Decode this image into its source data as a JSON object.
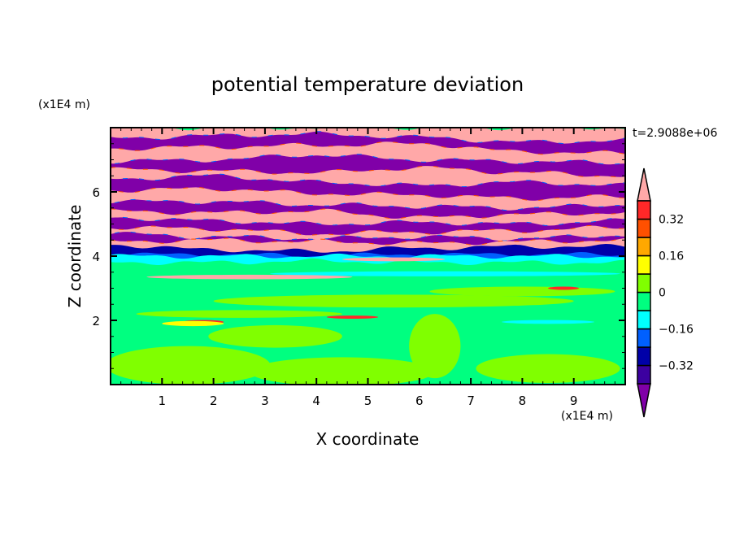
{
  "chart_data": {
    "type": "heatmap",
    "subtype": "filled-contour",
    "title": "potential temperature deviation",
    "xlabel": "X coordinate",
    "ylabel": "Z coordinate",
    "x_unit_label": "(x1E4 m)",
    "y_unit_label": "(x1E4 m)",
    "time_label": "t=2.9088e+06",
    "xlim": [
      0,
      10
    ],
    "ylim": [
      0,
      8
    ],
    "x_ticks": [
      "1",
      "2",
      "3",
      "4",
      "5",
      "6",
      "7",
      "8",
      "9"
    ],
    "y_ticks": [
      "2",
      "4",
      "6"
    ],
    "colorbar": {
      "levels": [
        -0.4,
        -0.32,
        -0.24,
        -0.16,
        -0.08,
        0,
        0.08,
        0.16,
        0.24,
        0.32,
        0.4
      ],
      "tick_labels": [
        "0.32",
        "0.16",
        "0",
        "−0.16",
        "−0.32"
      ],
      "tick_values": [
        0.32,
        0.16,
        0,
        -0.16,
        -0.32
      ],
      "colors": [
        "#3c00a0",
        "#0000a8",
        "#0060ff",
        "#00ffff",
        "#00ff80",
        "#80ff00",
        "#ffff00",
        "#ffa800",
        "#ff5000",
        "#ff2828"
      ],
      "under_color": "#8000a8",
      "over_color": "#ffa8a8",
      "extend": "both"
    },
    "band_x": [
      0,
      2,
      4,
      6,
      8,
      10
    ],
    "bands": [
      {
        "c": "over",
        "z": [
          8,
          8,
          8,
          8,
          8,
          8
        ]
      },
      {
        "c": "under",
        "z": [
          7.67,
          7.75,
          7.8,
          7.7,
          7.55,
          7.6
        ]
      },
      {
        "c": "over",
        "z": [
          7.35,
          7.4,
          7.45,
          7.5,
          7.25,
          7.2
        ]
      },
      {
        "c": "under",
        "z": [
          6.95,
          7.0,
          7.15,
          7.0,
          6.95,
          6.9
        ]
      },
      {
        "c": "over",
        "z": [
          6.7,
          6.65,
          6.6,
          6.75,
          6.6,
          6.5
        ]
      },
      {
        "c": "under",
        "z": [
          6.4,
          6.5,
          6.3,
          6.2,
          6.3,
          6.2
        ]
      },
      {
        "c": "over",
        "z": [
          6.05,
          6.1,
          5.95,
          5.9,
          5.8,
          5.85
        ]
      },
      {
        "c": "under",
        "z": [
          5.7,
          5.7,
          5.6,
          5.55,
          5.5,
          5.6
        ]
      },
      {
        "c": "over",
        "z": [
          5.4,
          5.35,
          5.4,
          5.2,
          5.3,
          5.35
        ]
      },
      {
        "c": "under",
        "z": [
          5.2,
          5.1,
          5.0,
          5.05,
          5.0,
          5.1
        ]
      },
      {
        "c": "over",
        "z": [
          4.9,
          4.85,
          4.7,
          4.75,
          4.8,
          4.9
        ]
      },
      {
        "c": "under",
        "z": [
          4.7,
          4.6,
          4.55,
          4.6,
          4.55,
          4.65
        ]
      },
      {
        "c": "over",
        "z": [
          4.45,
          4.5,
          4.45,
          4.4,
          4.45,
          4.5
        ]
      },
      {
        "c": 1,
        "z": [
          4.35,
          4.2,
          4.15,
          4.25,
          4.3,
          4.3
        ]
      },
      {
        "c": 2,
        "z": [
          4.05,
          4.05,
          4.02,
          4.05,
          4.05,
          4.05
        ]
      },
      {
        "c": 3,
        "z": [
          4.0,
          4.0,
          4.0,
          4.0,
          4.0,
          4.0
        ]
      },
      {
        "c": 4,
        "z": [
          3.8,
          3.8,
          3.85,
          3.8,
          3.8,
          3.8
        ]
      }
    ],
    "patches": [
      {
        "c": 5,
        "x": 1.5,
        "z": 0.6,
        "rx": 1.6,
        "rz": 0.6
      },
      {
        "c": 5,
        "x": 4.5,
        "z": 0.4,
        "rx": 1.8,
        "rz": 0.45
      },
      {
        "c": 5,
        "x": 6.3,
        "z": 1.2,
        "rx": 0.5,
        "rz": 1.0
      },
      {
        "c": 5,
        "x": 8.5,
        "z": 0.5,
        "rx": 1.4,
        "rz": 0.45
      },
      {
        "c": 5,
        "x": 3.2,
        "z": 1.5,
        "rx": 1.3,
        "rz": 0.35
      },
      {
        "c": 5,
        "x": 5.5,
        "z": 2.6,
        "rx": 3.5,
        "rz": 0.2
      },
      {
        "c": 5,
        "x": 2.5,
        "z": 2.2,
        "rx": 2.0,
        "rz": 0.12
      },
      {
        "c": 5,
        "x": 8.0,
        "z": 2.9,
        "rx": 1.8,
        "rz": 0.15
      },
      {
        "c": 3,
        "x": 6.5,
        "z": 3.45,
        "rx": 3.4,
        "rz": 0.08
      },
      {
        "c": 3,
        "x": 8.5,
        "z": 1.95,
        "rx": 0.9,
        "rz": 0.06
      },
      {
        "c": "over",
        "x": 2.7,
        "z": 3.35,
        "rx": 2.0,
        "rz": 0.07
      },
      {
        "c": "over",
        "x": 5.5,
        "z": 3.9,
        "rx": 1.0,
        "rz": 0.06
      },
      {
        "c": 9,
        "x": 1.8,
        "z": 1.95,
        "rx": 0.4,
        "rz": 0.06
      },
      {
        "c": 6,
        "x": 1.6,
        "z": 1.9,
        "rx": 0.6,
        "rz": 0.08
      },
      {
        "c": 9,
        "x": 4.7,
        "z": 2.1,
        "rx": 0.5,
        "rz": 0.05
      },
      {
        "c": 9,
        "x": 8.8,
        "z": 3.0,
        "rx": 0.3,
        "rz": 0.05
      }
    ]
  }
}
